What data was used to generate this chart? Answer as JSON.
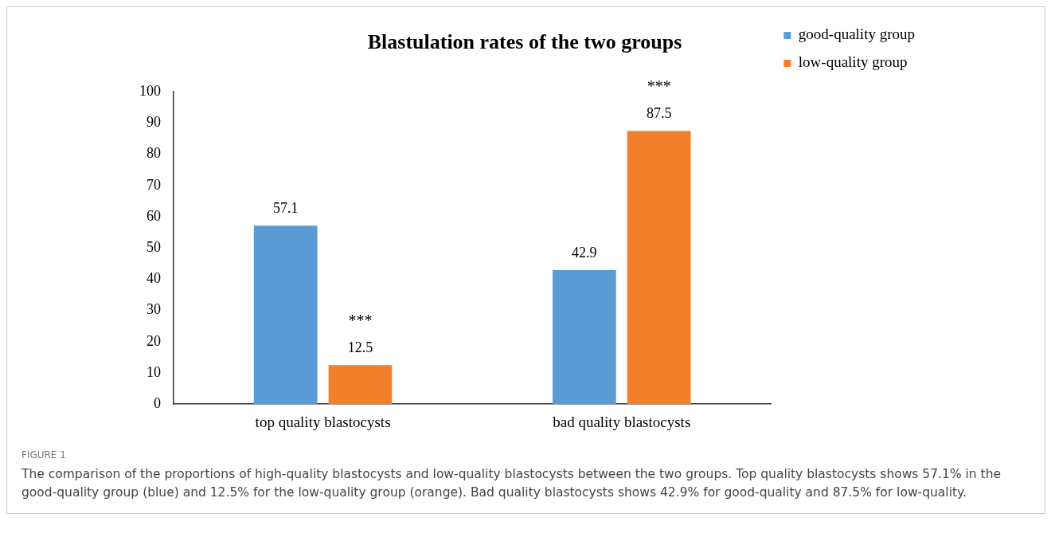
{
  "chart_data": {
    "type": "bar",
    "title": "Blastulation rates of the two groups",
    "categories": [
      "top quality blastocysts",
      "bad quality blastocysts"
    ],
    "series": [
      {
        "name": "good-quality group",
        "color": "#5b9bd5",
        "values": [
          57.1,
          42.9
        ]
      },
      {
        "name": "low-quality group",
        "color": "#f47f2b",
        "values": [
          12.5,
          87.5
        ]
      }
    ],
    "ylim": [
      0,
      100
    ],
    "yticks": [
      0,
      10,
      20,
      30,
      40,
      50,
      60,
      70,
      80,
      90,
      100
    ],
    "grid": false,
    "legend": "top right",
    "data_labels": true,
    "annotations": [
      "***",
      "***",
      "FIGURE 1",
      "The comparison of the proportions of high-quality blastocysts and low-quality blastocysts between the two groups. Top quality blastocysts shows 57.1% in the good-quality group (blue) and 12.5% for the low-quality group (orange). Bad quality blastocysts shows 42.9% for good-quality and 87.5% for low-quality."
    ]
  }
}
